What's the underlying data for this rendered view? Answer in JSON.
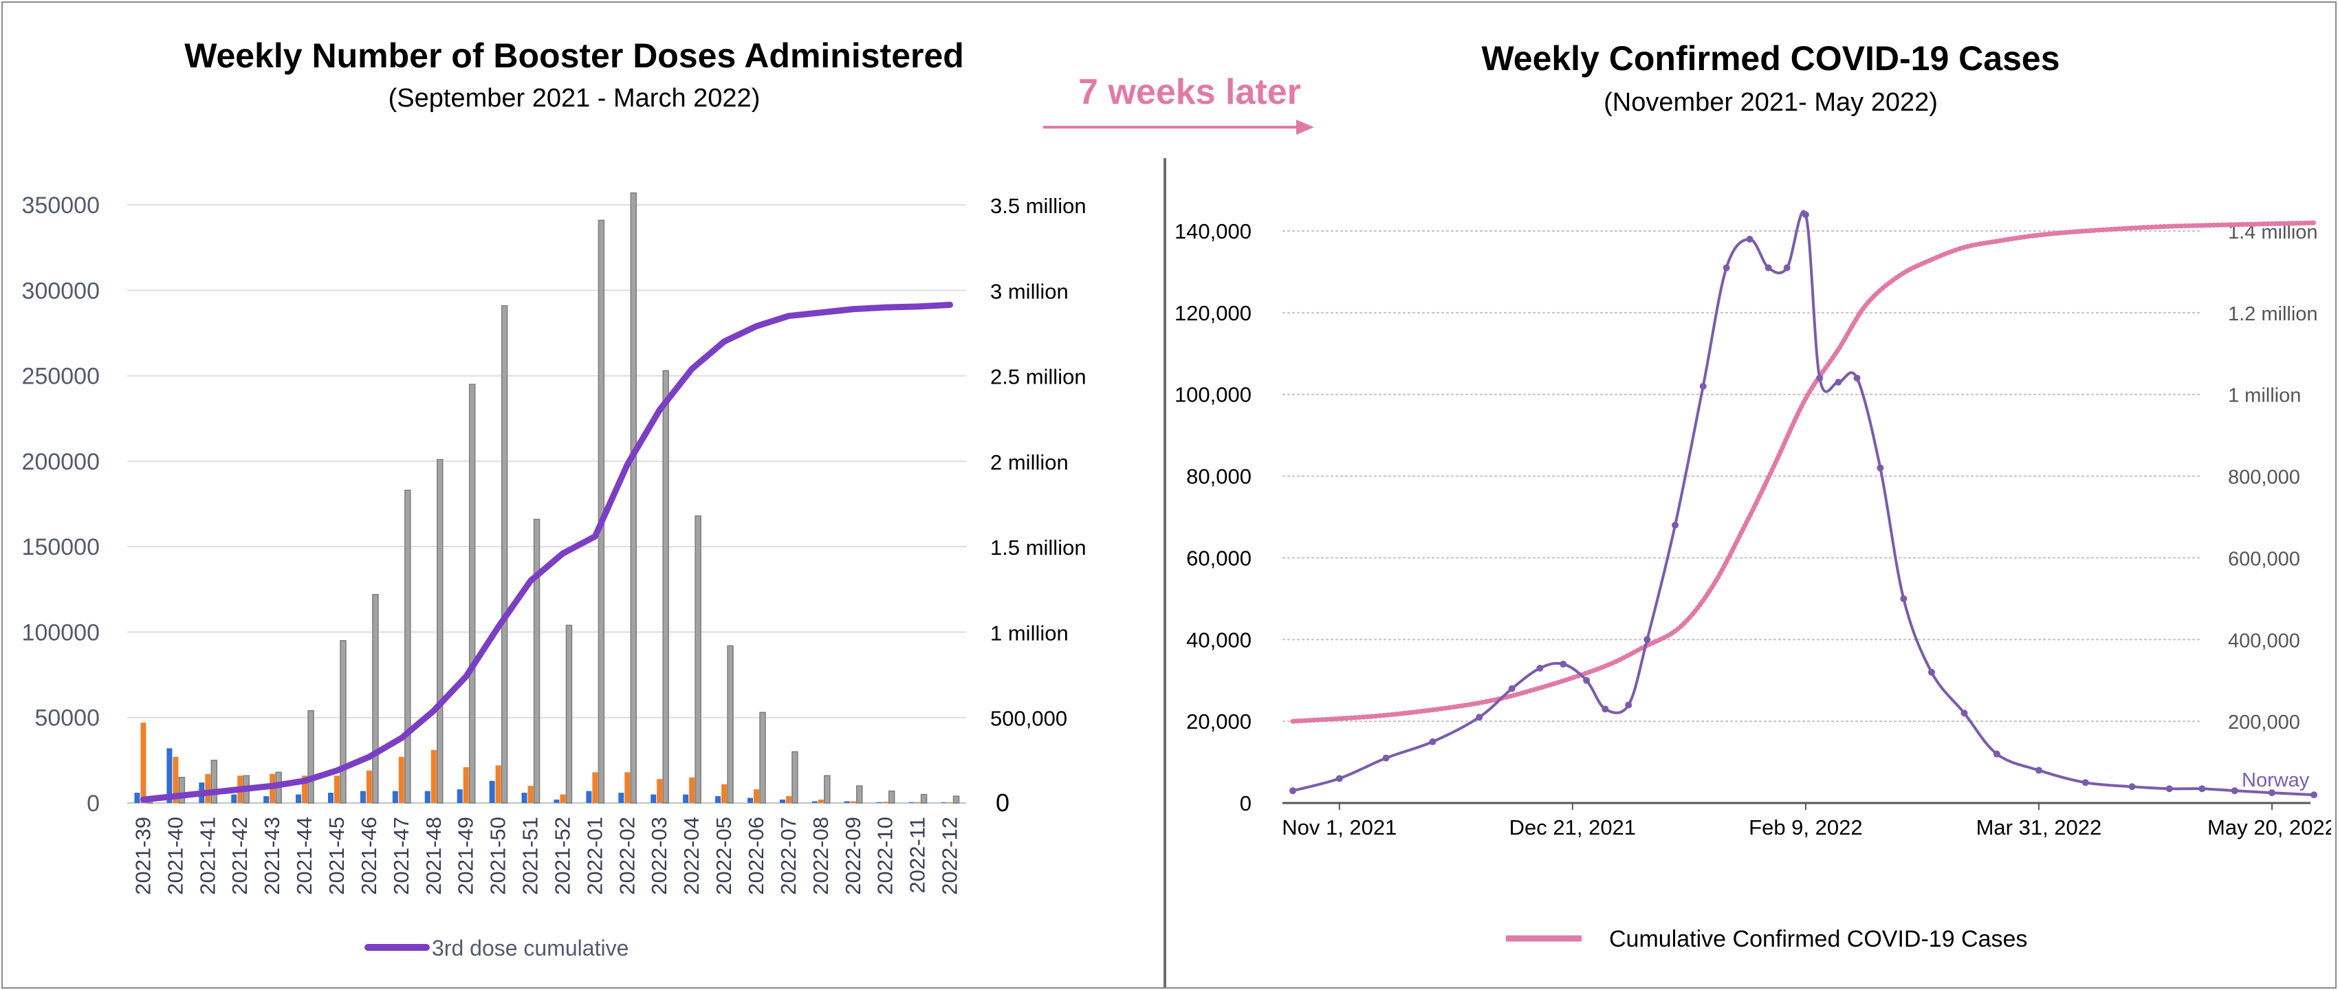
{
  "left_panel": {
    "title": "Weekly Number of Booster Doses Administered",
    "subtitle": "(September 2021 - March 2022)"
  },
  "right_panel": {
    "title": "Weekly Confirmed COVID-19 Cases",
    "subtitle": "(November 2021- May 2022)"
  },
  "connector": {
    "label": "7 weeks later",
    "color": "#e07aa6"
  },
  "chart_data": [
    {
      "type": "bar",
      "title": "Weekly Number of Booster Doses Administered",
      "subtitle": "(September 2021 - March 2022)",
      "categories": [
        "2021-39",
        "2021-40",
        "2021-41",
        "2021-42",
        "2021-43",
        "2021-44",
        "2021-45",
        "2021-46",
        "2021-47",
        "2021-48",
        "2021-49",
        "2021-50",
        "2021-51",
        "2021-52",
        "2022-01",
        "2022-02",
        "2022-03",
        "2022-04",
        "2022-05",
        "2022-06",
        "2022-07",
        "2022-08",
        "2022-09",
        "2022-10",
        "2022-11",
        "2022-12"
      ],
      "left_axis": {
        "ylim": [
          0,
          350000
        ],
        "ticks": [
          "0",
          "50000",
          "100000",
          "150000",
          "200000",
          "250000",
          "300000",
          "350000"
        ],
        "tick_values": [
          0,
          50000,
          100000,
          150000,
          200000,
          250000,
          300000,
          350000
        ]
      },
      "right_axis": {
        "ylim": [
          0,
          3500000
        ],
        "ticks": [
          "0",
          "500,000",
          "1 million",
          "1.5 million",
          "2 million",
          "2.5 million",
          "3 million",
          "3.5 million"
        ],
        "tick_values": [
          0,
          500000,
          1000000,
          1500000,
          2000000,
          2500000,
          3000000,
          3500000
        ]
      },
      "grid": true,
      "legend_position": "bottom",
      "series": [
        {
          "color": "#2f6fd6",
          "axis": "left",
          "values": [
            6000,
            32000,
            12000,
            5000,
            4000,
            5000,
            6000,
            7000,
            7000,
            7000,
            8000,
            13000,
            6000,
            2000,
            7000,
            6000,
            5000,
            5000,
            4000,
            3000,
            2000,
            1000,
            1000,
            500,
            500,
            300
          ]
        },
        {
          "color": "#f0812a",
          "axis": "left",
          "values": [
            47000,
            27000,
            17000,
            16000,
            17000,
            16000,
            16000,
            19000,
            27000,
            31000,
            21000,
            22000,
            10000,
            5000,
            18000,
            18000,
            14000,
            15000,
            11000,
            8000,
            4000,
            2000,
            1000,
            700,
            500,
            300
          ]
        },
        {
          "color": "#a3a3a3",
          "axis": "left",
          "values": [
            3000,
            15000,
            25000,
            16000,
            18000,
            54000,
            95000,
            122000,
            183000,
            201000,
            245000,
            291000,
            166000,
            104000,
            341000,
            357000,
            253000,
            168000,
            92000,
            53000,
            30000,
            16000,
            10000,
            7000,
            5000,
            4000
          ]
        },
        {
          "name": "3rd dose cumulative",
          "type": "line",
          "axis": "right",
          "color": "#7b3fc4",
          "values": [
            20000,
            40000,
            60000,
            80000,
            100000,
            130000,
            190000,
            270000,
            380000,
            540000,
            740000,
            1030000,
            1300000,
            1460000,
            1560000,
            1980000,
            2300000,
            2540000,
            2700000,
            2790000,
            2850000,
            2870000,
            2890000,
            2900000,
            2905000,
            2915000
          ]
        }
      ]
    },
    {
      "type": "line",
      "title": "Weekly Confirmed COVID-19 Cases",
      "subtitle": "(November 2021- May 2022)",
      "x_ticks": [
        "Nov 1, 2021",
        "Dec 21, 2021",
        "Feb 9, 2022",
        "Mar 31, 2022",
        "May 20, 2022"
      ],
      "x_tick_dates": [
        "2021-11-01",
        "2021-12-21",
        "2022-02-09",
        "2022-03-31",
        "2022-05-20"
      ],
      "x_range": [
        "2021-10-22",
        "2022-05-29"
      ],
      "left_axis": {
        "ylim": [
          0,
          140000
        ],
        "ticks": [
          "0",
          "20,000",
          "40,000",
          "60,000",
          "80,000",
          "100,000",
          "120,000",
          "140,000"
        ],
        "tick_values": [
          0,
          20000,
          40000,
          60000,
          80000,
          100000,
          120000,
          140000
        ]
      },
      "right_axis": {
        "ylim": [
          0,
          1400000
        ],
        "ticks": [
          "200,000",
          "400,000",
          "600,000",
          "800,000",
          "1 million",
          "1.2 million",
          "1.4 million"
        ],
        "tick_values": [
          200000,
          400000,
          600000,
          800000,
          1000000,
          1200000,
          1400000
        ]
      },
      "grid": true,
      "legend_position": "bottom",
      "series": [
        {
          "name": "Norway",
          "axis": "left",
          "color": "#7b5cab",
          "dates": [
            "2021-10-22",
            "2021-11-01",
            "2021-11-11",
            "2021-11-21",
            "2021-12-01",
            "2021-12-08",
            "2021-12-14",
            "2021-12-19",
            "2021-12-24",
            "2021-12-28",
            "2022-01-02",
            "2022-01-06",
            "2022-01-12",
            "2022-01-18",
            "2022-01-23",
            "2022-01-28",
            "2022-02-01",
            "2022-02-05",
            "2022-02-09",
            "2022-02-12",
            "2022-02-16",
            "2022-02-20",
            "2022-02-25",
            "2022-03-02",
            "2022-03-08",
            "2022-03-15",
            "2022-03-22",
            "2022-03-31",
            "2022-04-10",
            "2022-04-20",
            "2022-04-28",
            "2022-05-05",
            "2022-05-12",
            "2022-05-20",
            "2022-05-29"
          ],
          "values": [
            3000,
            6000,
            11000,
            15000,
            21000,
            28000,
            33000,
            34000,
            30000,
            23000,
            24000,
            40000,
            68000,
            102000,
            131000,
            138000,
            131000,
            131000,
            144000,
            104000,
            103000,
            104000,
            82000,
            50000,
            32000,
            22000,
            12000,
            8000,
            5000,
            4000,
            3500,
            3500,
            3000,
            2500,
            2000
          ]
        },
        {
          "name": "Cumulative Confirmed COVID-19 Cases",
          "axis": "right",
          "color": "#e07aa6",
          "dates": [
            "2021-10-22",
            "2021-11-11",
            "2021-12-01",
            "2021-12-15",
            "2021-12-28",
            "2022-01-05",
            "2022-01-13",
            "2022-01-20",
            "2022-01-27",
            "2022-02-02",
            "2022-02-09",
            "2022-02-16",
            "2022-02-22",
            "2022-03-01",
            "2022-03-08",
            "2022-03-15",
            "2022-03-22",
            "2022-03-31",
            "2022-04-10",
            "2022-04-25",
            "2022-05-10",
            "2022-05-29"
          ],
          "values": [
            200000,
            215000,
            245000,
            285000,
            335000,
            380000,
            430000,
            530000,
            680000,
            820000,
            990000,
            1110000,
            1220000,
            1290000,
            1330000,
            1360000,
            1375000,
            1390000,
            1400000,
            1410000,
            1415000,
            1420000
          ]
        }
      ]
    }
  ]
}
